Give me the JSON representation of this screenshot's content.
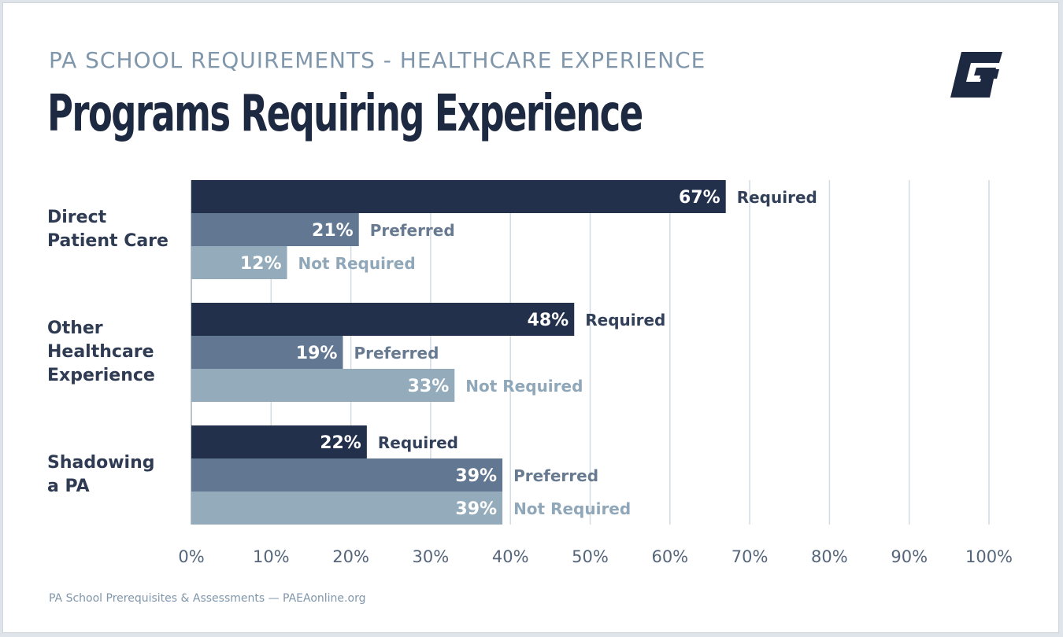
{
  "header": {
    "subtitle": "PA SCHOOL REQUIREMENTS - HEALTHCARE EXPERIENCE",
    "title": "Programs Requiring Experience"
  },
  "logo": {
    "icon": "g-brand-logo-icon",
    "color": "#1d2841"
  },
  "footer": {
    "source": "PA School Prerequisites & Assessments — PAEAonline.org"
  },
  "colors": {
    "required": "#22304c",
    "preferred": "#627791",
    "not_required": "#94abbb",
    "grid": "#d3dae2",
    "axis_text": "#55657a"
  },
  "chart_data": {
    "type": "bar",
    "orientation": "horizontal",
    "title": "Programs Requiring Experience",
    "categories": [
      "Direct\nPatient Care",
      "Other\nHealthcare\nExperience",
      "Shadowing\na PA"
    ],
    "series": [
      {
        "name": "Required",
        "values": [
          67,
          48,
          22
        ],
        "color": "#22304c"
      },
      {
        "name": "Preferred",
        "values": [
          21,
          19,
          39
        ],
        "color": "#627791"
      },
      {
        "name": "Not Required",
        "values": [
          12,
          33,
          39
        ],
        "color": "#94abbb"
      }
    ],
    "value_suffix": "%",
    "xlim": [
      0,
      100
    ],
    "x_ticks": [
      0,
      10,
      20,
      30,
      40,
      50,
      60,
      70,
      80,
      90,
      100
    ],
    "x_tick_labels": [
      "0%",
      "10%",
      "20%",
      "30%",
      "40%",
      "50%",
      "60%",
      "70%",
      "80%",
      "90%",
      "100%"
    ],
    "grid": true,
    "legend": "inline-after-bars"
  }
}
